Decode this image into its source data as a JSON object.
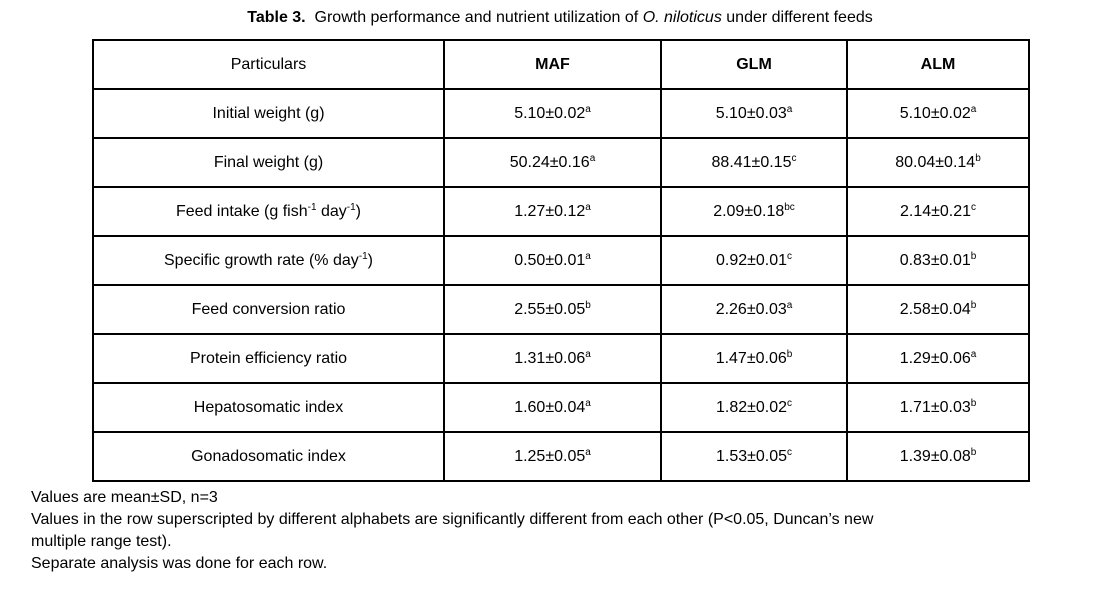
{
  "title": {
    "segments": [
      {
        "text": "Table 3.",
        "bold": true
      },
      {
        "text": "  Growth performance and nutrient utilization of "
      },
      {
        "text": "O. niloticus",
        "italic": true
      },
      {
        "text": " under different feeds"
      }
    ]
  },
  "table": {
    "columns": [
      "Particulars",
      "MAF",
      "GLM",
      "ALM"
    ],
    "rows": [
      {
        "label": [
          {
            "text": "Initial weight (g)"
          }
        ],
        "cells": [
          {
            "value": "5.10±0.02",
            "sup": "a"
          },
          {
            "value": "5.10±0.03",
            "sup": "a"
          },
          {
            "value": "5.10±0.02",
            "sup": "a"
          }
        ]
      },
      {
        "label": [
          {
            "text": "Final weight (g)"
          }
        ],
        "cells": [
          {
            "value": "50.24±0.16",
            "sup": "a"
          },
          {
            "value": "88.41±0.15",
            "sup": "c"
          },
          {
            "value": "80.04±0.14",
            "sup": "b"
          }
        ]
      },
      {
        "label": [
          {
            "text": "Feed intake (g fish"
          },
          {
            "text": "-1",
            "sup": true
          },
          {
            "text": " day"
          },
          {
            "text": "-1",
            "sup": true
          },
          {
            "text": ")"
          }
        ],
        "cells": [
          {
            "value": "1.27±0.12",
            "sup": "a"
          },
          {
            "value": "2.09±0.18",
            "sup": "bc"
          },
          {
            "value": "2.14±0.21",
            "sup": "c"
          }
        ]
      },
      {
        "label": [
          {
            "text": "Specific growth rate (% day"
          },
          {
            "text": "-1",
            "sup": true
          },
          {
            "text": ")"
          }
        ],
        "cells": [
          {
            "value": "0.50±0.01",
            "sup": "a"
          },
          {
            "value": "0.92±0.01",
            "sup": "c"
          },
          {
            "value": "0.83±0.01",
            "sup": "b"
          }
        ]
      },
      {
        "label": [
          {
            "text": "Feed conversion ratio"
          }
        ],
        "cells": [
          {
            "value": "2.55±0.05",
            "sup": "b"
          },
          {
            "value": "2.26±0.03",
            "sup": "a"
          },
          {
            "value": "2.58±0.04",
            "sup": "b"
          }
        ]
      },
      {
        "label": [
          {
            "text": "Protein efficiency ratio"
          }
        ],
        "cells": [
          {
            "value": "1.31±0.06",
            "sup": "a"
          },
          {
            "value": "1.47±0.06",
            "sup": "b"
          },
          {
            "value": "1.29±0.06",
            "sup": "a"
          }
        ]
      },
      {
        "label": [
          {
            "text": "Hepatosomatic index"
          }
        ],
        "cells": [
          {
            "value": "1.60±0.04",
            "sup": "a"
          },
          {
            "value": "1.82±0.02",
            "sup": "c"
          },
          {
            "value": "1.71±0.03",
            "sup": "b"
          }
        ]
      },
      {
        "label": [
          {
            "text": "Gonadosomatic index"
          }
        ],
        "cells": [
          {
            "value": "1.25±0.05",
            "sup": "a"
          },
          {
            "value": "1.53±0.05",
            "sup": "c"
          },
          {
            "value": "1.39±0.08",
            "sup": "b"
          }
        ]
      }
    ]
  },
  "footnotes": {
    "lines": [
      "Values are mean±SD, n=3",
      "Values in the row superscripted by different alphabets are significantly different from each other (P<0.05, Duncan’s new",
      "multiple range test).",
      "Separate analysis was done for each row."
    ]
  },
  "colors": {
    "text": "#000000",
    "background": "#ffffff",
    "border": "#000000"
  }
}
